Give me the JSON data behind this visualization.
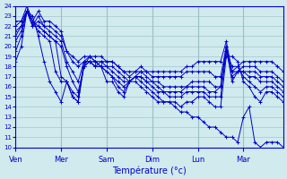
{
  "xlabel": "Température (°c)",
  "ylim": [
    10,
    24
  ],
  "yticks": [
    10,
    11,
    12,
    13,
    14,
    15,
    16,
    17,
    18,
    19,
    20,
    21,
    22,
    23,
    24
  ],
  "day_labels": [
    "Ven",
    "Mer",
    "Sam",
    "Dim",
    "Lun",
    "Mar"
  ],
  "day_x_positions": [
    0,
    8,
    16,
    24,
    32,
    40
  ],
  "n_points": 48,
  "bg_color": "#d0eaed",
  "line_color": "#0000cc",
  "marker": "+",
  "grid_color": "#9bbfc4",
  "series": [
    [
      18.5,
      20.0,
      23.5,
      23.0,
      21.0,
      18.5,
      16.5,
      15.5,
      14.5,
      16.5,
      15.0,
      14.5,
      18.0,
      19.0,
      18.5,
      18.0,
      16.5,
      16.5,
      15.5,
      15.0,
      16.5,
      16.5,
      16.0,
      15.5,
      15.0,
      14.5,
      14.5,
      14.5,
      14.0,
      13.5,
      13.5,
      13.0,
      13.0,
      12.5,
      12.0,
      12.0,
      11.5,
      11.0,
      11.0,
      10.5,
      13.0,
      14.0,
      10.5,
      10.0,
      10.5,
      10.5,
      10.5,
      10.0
    ],
    [
      19.5,
      21.0,
      23.5,
      22.5,
      21.5,
      21.0,
      20.5,
      17.5,
      16.5,
      16.5,
      15.0,
      14.5,
      18.5,
      19.0,
      18.5,
      18.0,
      17.5,
      17.0,
      16.0,
      15.5,
      16.5,
      17.0,
      16.5,
      16.0,
      15.5,
      15.0,
      14.5,
      14.5,
      14.5,
      14.0,
      14.5,
      14.5,
      15.0,
      15.0,
      14.5,
      14.0,
      14.0,
      19.0,
      19.0,
      18.5,
      16.5,
      16.0,
      15.0,
      14.5,
      15.5,
      15.5,
      15.0,
      14.5
    ],
    [
      20.5,
      21.5,
      23.5,
      22.5,
      22.0,
      21.5,
      21.0,
      20.5,
      17.0,
      16.5,
      15.5,
      15.0,
      18.0,
      18.5,
      18.0,
      18.0,
      17.5,
      17.0,
      16.5,
      16.0,
      16.5,
      17.0,
      17.0,
      16.5,
      16.0,
      15.5,
      15.5,
      15.0,
      15.0,
      15.0,
      15.5,
      15.5,
      15.5,
      15.5,
      15.0,
      15.0,
      15.0,
      19.5,
      18.0,
      18.0,
      17.0,
      16.5,
      16.0,
      15.5,
      16.0,
      16.0,
      15.5,
      15.0
    ],
    [
      21.0,
      22.0,
      23.5,
      22.0,
      22.0,
      21.5,
      21.0,
      20.5,
      20.0,
      18.0,
      16.5,
      15.5,
      18.0,
      18.5,
      18.0,
      18.0,
      18.0,
      17.5,
      17.0,
      16.5,
      16.5,
      17.0,
      17.0,
      16.5,
      16.5,
      16.0,
      15.5,
      15.5,
      15.5,
      15.5,
      16.0,
      16.0,
      16.0,
      16.0,
      15.5,
      15.5,
      16.0,
      20.0,
      17.5,
      17.5,
      17.5,
      17.0,
      17.0,
      16.5,
      16.5,
      16.5,
      16.0,
      15.5
    ],
    [
      21.5,
      22.0,
      23.5,
      22.0,
      22.5,
      22.0,
      21.5,
      21.0,
      20.5,
      18.5,
      17.5,
      16.5,
      18.5,
      18.5,
      18.0,
      18.5,
      18.0,
      18.0,
      17.5,
      17.0,
      16.5,
      17.0,
      17.5,
      17.0,
      16.5,
      16.5,
      16.0,
      16.0,
      16.0,
      16.0,
      16.0,
      16.5,
      16.5,
      16.5,
      16.5,
      16.0,
      16.0,
      19.5,
      17.0,
      17.5,
      17.5,
      17.5,
      17.5,
      17.0,
      17.0,
      17.0,
      16.5,
      16.0
    ],
    [
      22.0,
      22.5,
      23.5,
      22.0,
      23.0,
      22.0,
      22.0,
      21.5,
      21.0,
      19.5,
      18.5,
      18.0,
      18.5,
      18.5,
      18.5,
      18.5,
      18.5,
      18.5,
      18.0,
      17.5,
      17.0,
      17.5,
      17.5,
      17.5,
      17.0,
      17.0,
      17.0,
      17.0,
      17.0,
      17.0,
      17.5,
      17.5,
      17.5,
      17.5,
      17.5,
      17.0,
      17.0,
      20.0,
      16.5,
      17.5,
      18.0,
      18.0,
      18.0,
      17.5,
      17.5,
      17.5,
      17.0,
      16.5
    ],
    [
      22.5,
      22.5,
      24.0,
      22.5,
      23.5,
      22.5,
      22.5,
      22.0,
      21.5,
      19.5,
      19.0,
      18.5,
      19.0,
      19.0,
      19.0,
      19.0,
      18.5,
      18.5,
      18.0,
      17.5,
      17.5,
      17.5,
      18.0,
      17.5,
      17.5,
      17.5,
      17.5,
      17.5,
      17.5,
      17.5,
      18.0,
      18.0,
      18.5,
      18.5,
      18.5,
      18.5,
      18.5,
      20.5,
      17.5,
      18.0,
      18.5,
      18.5,
      18.5,
      18.5,
      18.5,
      18.5,
      18.0,
      17.5
    ]
  ]
}
